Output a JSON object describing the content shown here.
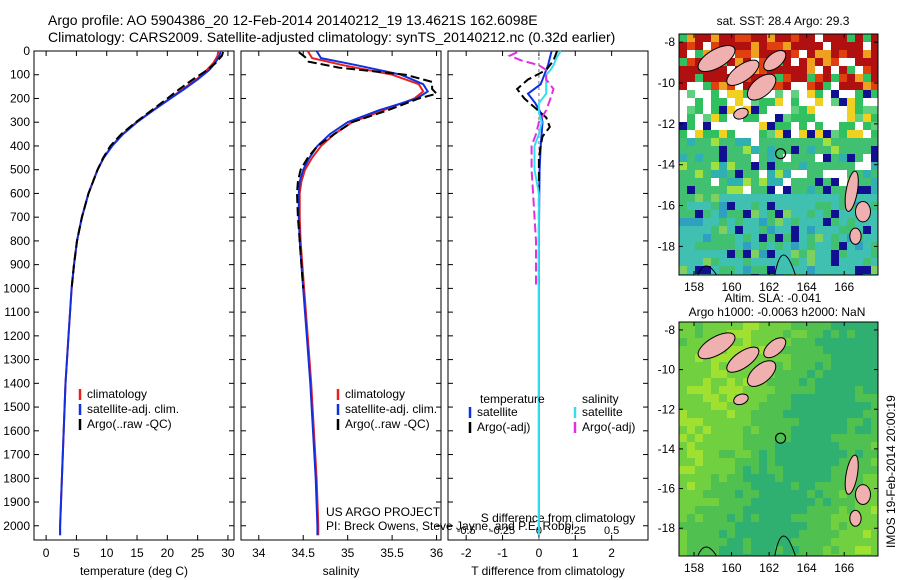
{
  "header": {
    "line1": "Argo profile: AO 5904386_20 12-Feb-2014 20140212_19 13.4621S 162.6098E",
    "line2": "Climatology: CARS2009. Satellite-adjusted climatology: synTS_20140212.nc (0.32d earlier)"
  },
  "credit": {
    "line1": "US ARGO PROJECT",
    "line2": "PI: Breck Owens, Steve Jayne, and P.E. Robbi"
  },
  "footer_stamp": "IMOS 19-Feb-2014 20:00:19",
  "colors": {
    "climatology": "#e82020",
    "satellite": "#1030e0",
    "argo": "#000000",
    "sal_satellite": "#30e0f0",
    "sal_argo": "#e030e0"
  },
  "chart_data": [
    {
      "type": "line",
      "id": "temperature-profile",
      "xlabel": "temperature (deg C)",
      "xlim": [
        -2,
        31
      ],
      "xticks": [
        0,
        5,
        10,
        15,
        20,
        25,
        30
      ],
      "ylim": [
        0,
        2060
      ],
      "yticks": [
        0,
        100,
        200,
        300,
        400,
        500,
        600,
        700,
        800,
        900,
        1000,
        1100,
        1200,
        1300,
        1400,
        1500,
        1600,
        1700,
        1800,
        1900,
        2000
      ],
      "legend": [
        "climatology",
        "satellite-adj. clim.",
        "Argo(..raw -QC)"
      ],
      "legend_position": "lower-center",
      "series": [
        {
          "name": "climatology",
          "depth": [
            0,
            20,
            50,
            80,
            120,
            160,
            200,
            250,
            300,
            350,
            400,
            450,
            500,
            600,
            700,
            800,
            900,
            1000,
            1200,
            1400,
            1600,
            1800,
            2000,
            2040
          ],
          "values": [
            28.4,
            28.3,
            27.6,
            26.5,
            24.8,
            22.6,
            20.4,
            17.6,
            14.9,
            12.6,
            10.8,
            9.5,
            8.5,
            7.0,
            5.9,
            5.1,
            4.6,
            4.2,
            3.7,
            3.2,
            2.9,
            2.6,
            2.3,
            2.3
          ]
        },
        {
          "name": "satellite-adj. clim.",
          "depth": [
            0,
            20,
            50,
            80,
            120,
            160,
            200,
            250,
            300,
            350,
            400,
            450,
            500,
            600,
            700,
            800,
            900,
            1000,
            1200,
            1400,
            1600,
            1800,
            2000,
            2040
          ],
          "values": [
            28.8,
            28.6,
            27.9,
            26.9,
            25.0,
            22.8,
            20.5,
            17.7,
            15.0,
            12.7,
            10.9,
            9.5,
            8.5,
            7.0,
            5.9,
            5.1,
            4.6,
            4.2,
            3.7,
            3.2,
            2.9,
            2.6,
            2.3,
            2.3
          ]
        },
        {
          "name": "Argo(..raw -QC)",
          "depth": [
            4,
            20,
            50,
            80,
            120,
            160,
            200,
            250,
            300,
            350,
            400,
            450,
            500,
            600,
            700,
            800,
            900,
            1000
          ],
          "values": [
            29.2,
            29.0,
            28.0,
            26.6,
            24.2,
            22.0,
            20.0,
            17.4,
            14.8,
            12.4,
            10.6,
            9.4,
            8.5,
            7.0,
            5.9,
            5.1,
            4.6,
            4.2
          ]
        }
      ]
    },
    {
      "type": "line",
      "id": "salinity-profile",
      "xlabel": "salinity",
      "xlim": [
        33.8,
        36.05
      ],
      "xticks": [
        34,
        34.5,
        35,
        35.5,
        36
      ],
      "ylim": [
        0,
        2060
      ],
      "legend": [
        "climatology",
        "satellite-adj. clim.",
        "Argo(..raw -QC)"
      ],
      "legend_position": "lower-center",
      "series": [
        {
          "name": "climatology",
          "depth": [
            0,
            30,
            60,
            100,
            140,
            170,
            200,
            250,
            300,
            350,
            400,
            450,
            500,
            550,
            600,
            700,
            800,
            900,
            1000,
            1200,
            1400,
            1600,
            1800,
            2000,
            2040
          ],
          "values": [
            34.55,
            34.6,
            34.95,
            35.5,
            35.8,
            35.85,
            35.75,
            35.4,
            35.05,
            34.85,
            34.7,
            34.6,
            34.52,
            34.48,
            34.46,
            34.46,
            34.47,
            34.49,
            34.51,
            34.55,
            34.59,
            34.62,
            34.65,
            34.67,
            34.67
          ]
        },
        {
          "name": "satellite-adj. clim.",
          "depth": [
            0,
            30,
            60,
            100,
            140,
            170,
            200,
            250,
            300,
            350,
            400,
            450,
            500,
            550,
            600,
            700,
            800,
            900,
            1000,
            1200,
            1400,
            1600,
            1800,
            2000,
            2040
          ],
          "values": [
            34.65,
            34.7,
            35.1,
            35.6,
            35.85,
            35.9,
            35.78,
            35.35,
            35.0,
            34.8,
            34.66,
            34.57,
            34.5,
            34.46,
            34.45,
            34.45,
            34.46,
            34.48,
            34.5,
            34.54,
            34.58,
            34.61,
            34.64,
            34.66,
            34.66
          ]
        },
        {
          "name": "Argo(..raw -QC)",
          "depth": [
            5,
            25,
            45,
            70,
            100,
            130,
            160,
            180,
            200,
            250,
            300,
            350,
            400,
            450,
            500,
            550,
            600,
            700,
            800,
            900,
            1000
          ],
          "values": [
            34.45,
            34.52,
            34.56,
            34.9,
            35.65,
            35.95,
            35.95,
            36.0,
            35.8,
            35.45,
            35.05,
            34.85,
            34.66,
            34.55,
            34.47,
            34.44,
            34.43,
            34.44,
            34.46,
            34.48,
            34.5
          ]
        }
      ]
    },
    {
      "type": "line",
      "id": "difference-profile",
      "xlabel": "T difference from climatology",
      "xlabel2": "S difference from climatology",
      "xlim": [
        -2.5,
        3.0
      ],
      "xticks": [
        -2,
        -1,
        0,
        1,
        2
      ],
      "xticks2": [
        -0.5,
        -0.25,
        0,
        0.25,
        0.5
      ],
      "xticks2_labels": [
        "-0.5",
        "-0.25",
        "0",
        "0.25",
        "0.5"
      ],
      "ylim": [
        0,
        2060
      ],
      "legend_temp_title": "temperature",
      "legend_sal_title": "salinity",
      "legend": [
        "satellite",
        "Argo(-adj)",
        "satellite",
        "Argo(-adj)"
      ],
      "series": [
        {
          "name": "satellite",
          "group": "temperature",
          "depth": [
            0,
            30,
            60,
            100,
            140,
            180,
            220,
            260,
            300,
            400,
            500,
            600,
            800,
            1000,
            1500,
            2000,
            2040
          ],
          "values": [
            0.35,
            0.3,
            0.25,
            0.15,
            0.05,
            -0.3,
            -0.1,
            0.05,
            0.1,
            0.05,
            0.02,
            0.01,
            0.0,
            0.0,
            0.0,
            0.0,
            0.0
          ]
        },
        {
          "name": "Argo(-adj)",
          "group": "temperature",
          "depth": [
            0,
            40,
            80,
            120,
            160,
            200,
            240,
            280,
            320,
            360,
            400,
            450,
            500,
            600,
            800,
            1000
          ],
          "values": [
            0.5,
            0.4,
            0.2,
            -0.3,
            -0.6,
            -0.4,
            -0.1,
            0.2,
            0.3,
            0.1,
            0.05,
            0.0,
            0.0,
            0.0,
            0.0,
            0.0
          ]
        },
        {
          "name": "satellite",
          "group": "salinity",
          "depth": [
            0,
            30,
            60,
            80,
            100,
            140,
            180,
            220,
            260,
            300,
            350,
            400,
            500,
            600,
            800,
            1000,
            1500,
            2000,
            2040
          ],
          "values": [
            0.15,
            0.12,
            0.1,
            0.08,
            0.05,
            0.05,
            0.05,
            0.0,
            0.0,
            0.02,
            0.0,
            -0.03,
            -0.03,
            0.0,
            0.0,
            0.0,
            0.0,
            0.0,
            0.0
          ]
        },
        {
          "name": "Argo(-adj)",
          "group": "salinity",
          "depth": [
            5,
            20,
            40,
            60,
            80,
            100,
            120,
            160,
            200,
            250,
            300,
            350,
            400,
            450,
            500,
            600,
            700,
            800,
            900,
            1000
          ],
          "values": [
            -0.15,
            -0.2,
            -0.12,
            0.0,
            0.05,
            0.05,
            0.05,
            0.1,
            0.08,
            0.05,
            0.0,
            -0.02,
            -0.05,
            -0.05,
            -0.05,
            -0.04,
            -0.03,
            -0.02,
            -0.02,
            -0.02
          ]
        }
      ]
    },
    {
      "type": "heatmap",
      "id": "sst-map",
      "title": "sat. SST: 28.4 Argo: 29.3",
      "xlim": [
        157.2,
        167.8
      ],
      "ylim": [
        -19.4,
        -7.6
      ],
      "xticks": [
        158,
        160,
        162,
        164,
        166
      ],
      "yticks": [
        -8,
        -10,
        -12,
        -14,
        -16,
        -18
      ],
      "marker": {
        "lon": 162.61,
        "lat": -13.46
      }
    },
    {
      "type": "heatmap",
      "id": "sla-map",
      "title": "Altim. SLA: -0.041",
      "subtitle": "Argo h1000: -0.0063 h2000: NaN",
      "xlim": [
        157.2,
        167.8
      ],
      "ylim": [
        -19.4,
        -7.6
      ],
      "xticks": [
        158,
        160,
        162,
        164,
        166
      ],
      "yticks": [
        -8,
        -10,
        -12,
        -14,
        -16,
        -18
      ],
      "marker": {
        "lon": 162.61,
        "lat": -13.46
      }
    }
  ]
}
